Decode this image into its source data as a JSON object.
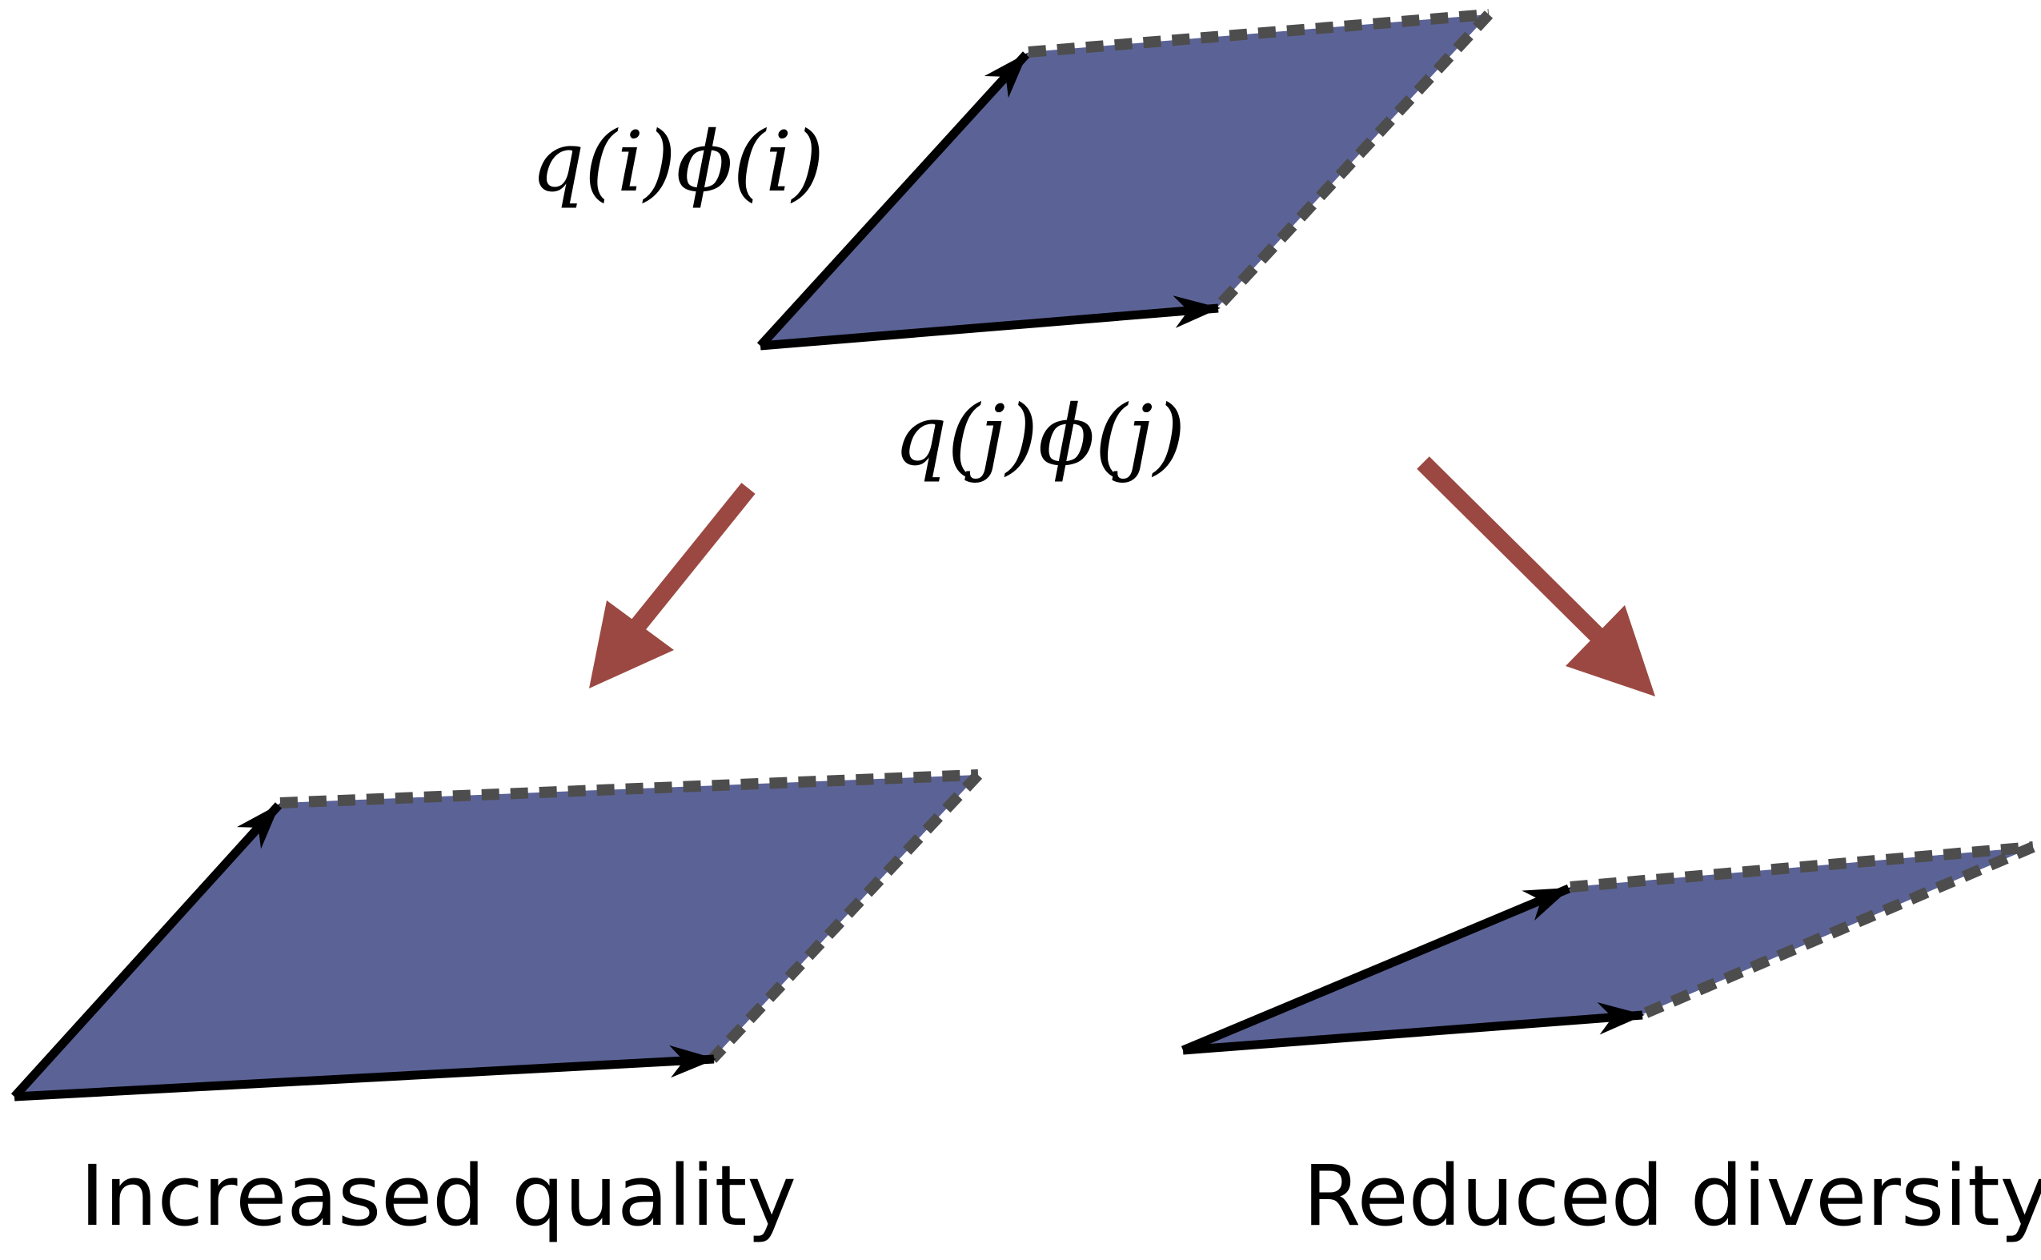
{
  "labels": {
    "vector_i": "q(i)ϕ(i)",
    "vector_j": "q(j)ϕ(j)",
    "caption_left": "Increased quality",
    "caption_right": "Reduced diversity"
  },
  "colors": {
    "parallelogram_fill": "#5b6396",
    "vector_stroke": "#000000",
    "dashed_edge": "#4d4d4d",
    "transition_arrow": "#9b4842",
    "background": "#ffffff"
  }
}
